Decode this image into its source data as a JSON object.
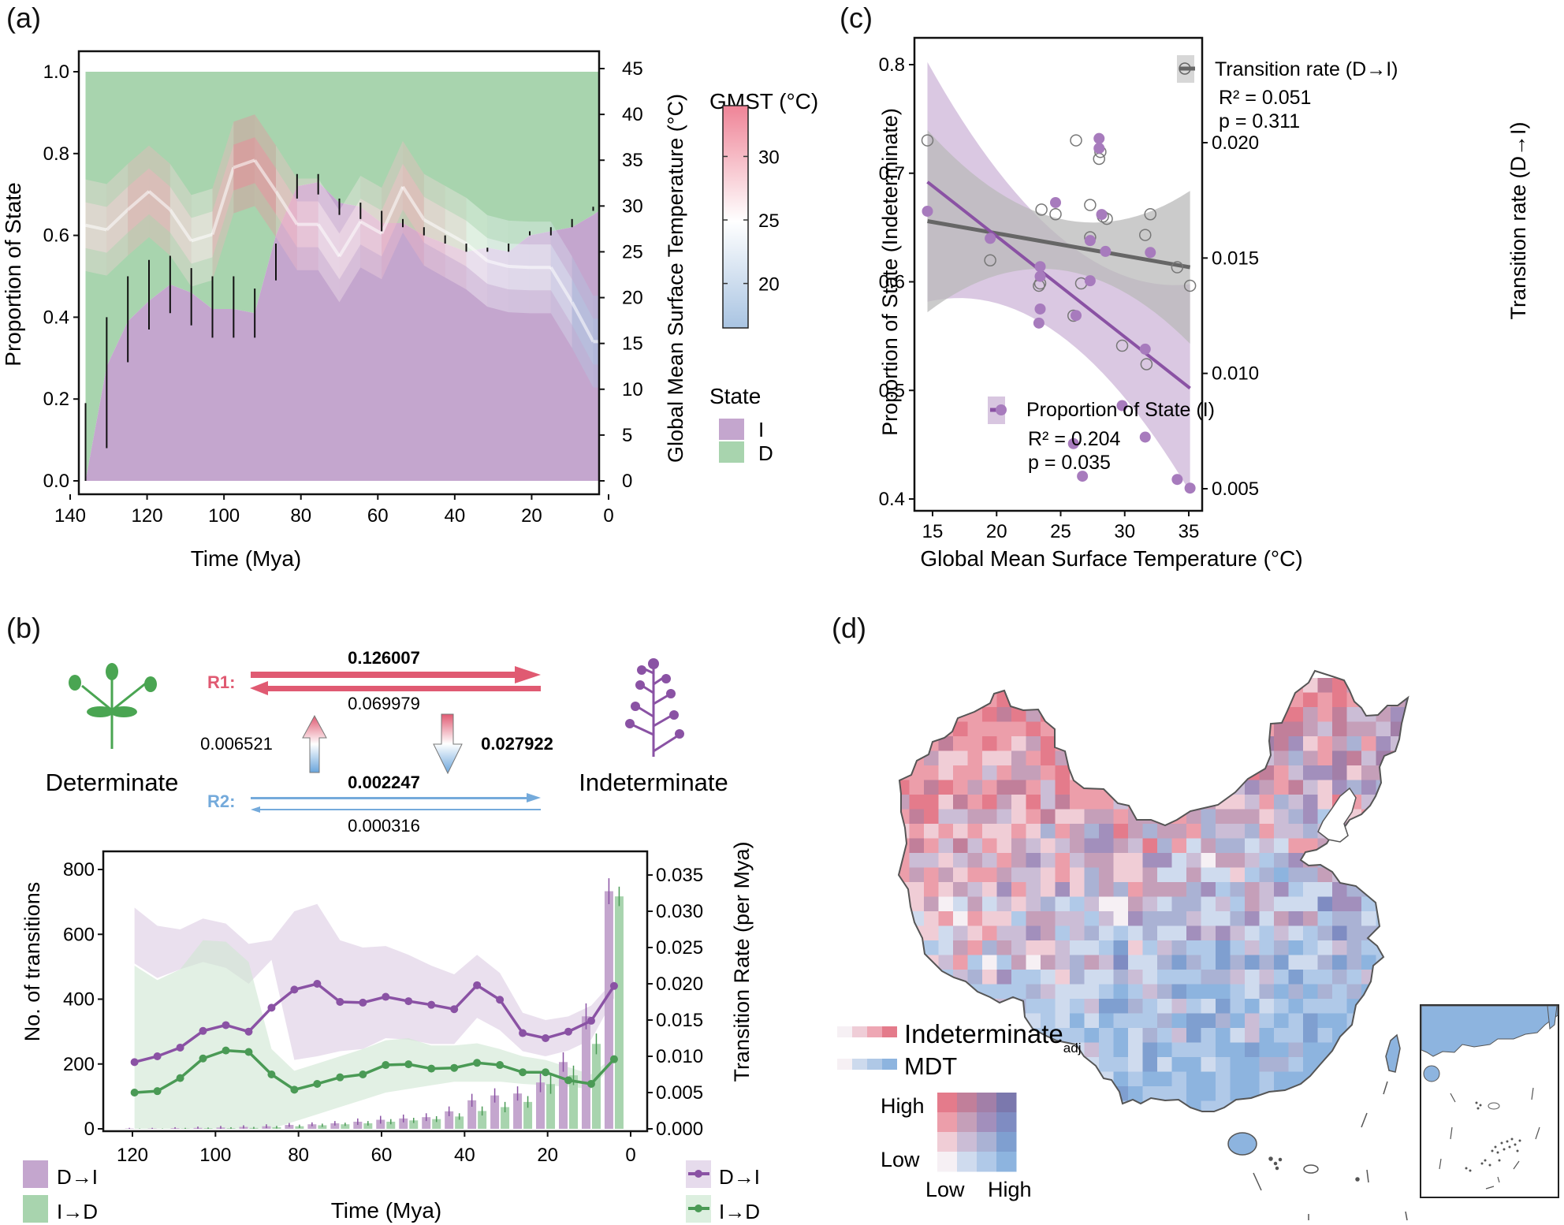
{
  "panel_labels": {
    "a": "(a)",
    "b": "(b)",
    "c": "(c)",
    "d": "(d)"
  },
  "chart_data": [
    {
      "id": "a",
      "type": "area",
      "title": "",
      "xlabel": "Time (Mya)",
      "ylabel": "Proportion of State",
      "y2label": "Global Mean Surface Temperature (°C)",
      "xlim": [
        140,
        0
      ],
      "ylim": [
        0,
        1.0
      ],
      "y2lim": [
        0,
        45
      ],
      "x_ticks": [
        140,
        120,
        100,
        80,
        60,
        40,
        20,
        0
      ],
      "y_ticks": [
        0.0,
        0.2,
        0.4,
        0.6,
        0.8,
        1.0
      ],
      "y_tick_labels": [
        "0.0",
        "0.2",
        "0.4",
        "0.6",
        "0.8",
        "1.0"
      ],
      "y2_ticks": [
        0,
        5,
        10,
        15,
        20,
        25,
        30,
        35,
        40,
        45
      ],
      "x": [
        136,
        130.5,
        125,
        119.5,
        114,
        108.5,
        103,
        97.5,
        92,
        86.5,
        81,
        75.5,
        70,
        64.5,
        59,
        53.5,
        48,
        42.5,
        37,
        31.5,
        26,
        20.5,
        15,
        9.5,
        4,
        2.5
      ],
      "series": [
        {
          "name": "I",
          "color": "#c4a6ce",
          "values": [
            0.0,
            0.28,
            0.39,
            0.44,
            0.48,
            0.46,
            0.42,
            0.42,
            0.41,
            0.6,
            0.72,
            0.73,
            0.68,
            0.67,
            0.63,
            0.63,
            0.6,
            0.58,
            0.56,
            0.57,
            0.56,
            0.6,
            0.61,
            0.62,
            0.65,
            0.66
          ]
        },
        {
          "name": "D",
          "color": "#a8d4ae",
          "values": [
            1.0,
            0.72,
            0.61,
            0.56,
            0.52,
            0.54,
            0.58,
            0.58,
            0.59,
            0.4,
            0.28,
            0.27,
            0.32,
            0.33,
            0.37,
            0.37,
            0.4,
            0.42,
            0.44,
            0.43,
            0.44,
            0.4,
            0.39,
            0.38,
            0.35,
            0.34
          ]
        }
      ],
      "error_bars": {
        "x": [
          136,
          130.5,
          125,
          119.5,
          114,
          108.5,
          103,
          97.5,
          92,
          86.5,
          81,
          75.5,
          70,
          64.5,
          59,
          53.5,
          48,
          42.5,
          37,
          31.5,
          26,
          20.5,
          15,
          9.5,
          4
        ],
        "low": [
          0.0,
          0.08,
          0.29,
          0.37,
          0.41,
          0.38,
          0.35,
          0.35,
          0.35,
          0.49,
          0.69,
          0.7,
          0.65,
          0.64,
          0.61,
          0.62,
          0.6,
          0.58,
          0.56,
          0.56,
          0.56,
          0.6,
          0.6,
          0.62,
          0.66
        ],
        "high": [
          0.19,
          0.4,
          0.5,
          0.54,
          0.55,
          0.52,
          0.5,
          0.5,
          0.47,
          0.58,
          0.75,
          0.75,
          0.69,
          0.68,
          0.66,
          0.64,
          0.62,
          0.6,
          0.58,
          0.57,
          0.58,
          0.61,
          0.62,
          0.64,
          0.67
        ]
      },
      "gmst": {
        "name": "GMST (°C)",
        "x": [
          136,
          130.5,
          125,
          119.5,
          114,
          108.5,
          103,
          97.5,
          92,
          86.5,
          81,
          75.5,
          70,
          64.5,
          59,
          53.5,
          48,
          42.5,
          37,
          31.5,
          26,
          20.5,
          15,
          9.5,
          4,
          2.5
        ],
        "values": [
          27.9,
          27.4,
          29.6,
          31.6,
          29.6,
          26.2,
          26.9,
          34.2,
          35.0,
          31.6,
          28.0,
          28.0,
          24.5,
          28.3,
          27.0,
          32.1,
          28.5,
          27.2,
          25.9,
          24.0,
          23.4,
          23.3,
          23.3,
          19.5,
          15.2,
          15.2
        ],
        "band_inner": 2.5,
        "band_outer": 5.0
      },
      "colorbar": {
        "title": "GMST (°C)",
        "ticks": [
          20,
          25,
          30
        ],
        "range": [
          16.5,
          34
        ],
        "colors": [
          "#a9c4e2",
          "#ffffff",
          "#ef8497"
        ]
      },
      "legend": {
        "title": "State",
        "items": [
          {
            "label": "I",
            "color": "#c4a6ce"
          },
          {
            "label": "D",
            "color": "#a8d4ae"
          }
        ],
        "placement": "right"
      }
    },
    {
      "id": "c",
      "type": "scatter",
      "xlabel": "Global Mean Surface Temperature (°C)",
      "ylabel": "Proportion of State (Indeterminate)",
      "y2label": "Transition rate (D→I)",
      "xlim": [
        13.6,
        36.2
      ],
      "ylim": [
        0.39,
        0.825
      ],
      "y2lim": [
        0.0043,
        0.0232
      ],
      "x_ticks": [
        15,
        20,
        25,
        30,
        35
      ],
      "y_ticks": [
        0.4,
        0.5,
        0.6,
        0.7,
        0.8
      ],
      "y_tick_labels": [
        "0.4",
        "0.5",
        "0.6",
        "0.7",
        "0.8"
      ],
      "y2_ticks": [
        0.005,
        0.01,
        0.015,
        0.02
      ],
      "y2_tick_labels": [
        "0.005",
        "0.010",
        "0.015",
        "0.020"
      ],
      "series": [
        {
          "name": "Proportion of State (I)",
          "color": "#8a52a4",
          "marker": "filled-circle",
          "axis": "left",
          "points": [
            [
              14.6,
              0.665
            ],
            [
              19.5,
              0.64
            ],
            [
              23.3,
              0.562
            ],
            [
              23.4,
              0.575
            ],
            [
              23.4,
              0.605
            ],
            [
              23.4,
              0.614
            ],
            [
              24.6,
              0.673
            ],
            [
              26.0,
              0.451
            ],
            [
              26.2,
              0.569
            ],
            [
              26.7,
              0.421
            ],
            [
              27.3,
              0.601
            ],
            [
              27.3,
              0.638
            ],
            [
              28.0,
              0.723
            ],
            [
              28.0,
              0.732
            ],
            [
              28.2,
              0.662
            ],
            [
              28.5,
              0.628
            ],
            [
              29.8,
              0.486
            ],
            [
              31.6,
              0.538
            ],
            [
              31.6,
              0.457
            ],
            [
              32.0,
              0.627
            ],
            [
              34.1,
              0.418
            ],
            [
              35.1,
              0.41
            ]
          ],
          "fit": {
            "x": [
              14.6,
              35.1
            ],
            "y": [
              0.692,
              0.502
            ]
          },
          "r2": "R² = 0.204",
          "p": "p = 0.035"
        },
        {
          "name": "Transition rate (D→I)",
          "color": "#666666",
          "marker": "open-circle",
          "axis": "right",
          "points": [
            [
              14.6,
              0.0201
            ],
            [
              19.5,
              0.0149
            ],
            [
              23.3,
              0.0138
            ],
            [
              23.4,
              0.0139
            ],
            [
              23.5,
              0.0171
            ],
            [
              24.6,
              0.0169
            ],
            [
              26.0,
              0.0125
            ],
            [
              26.2,
              0.0201
            ],
            [
              26.6,
              0.0139
            ],
            [
              27.3,
              0.0159
            ],
            [
              27.3,
              0.0173
            ],
            [
              28.0,
              0.0193
            ],
            [
              28.1,
              0.0196
            ],
            [
              28.3,
              0.0168
            ],
            [
              28.6,
              0.0167
            ],
            [
              29.8,
              0.0112
            ],
            [
              31.6,
              0.016
            ],
            [
              31.7,
              0.0104
            ],
            [
              32.0,
              0.0169
            ],
            [
              34.1,
              0.0146
            ],
            [
              35.1,
              0.0138
            ]
          ],
          "fit": {
            "x": [
              14.6,
              35.1
            ],
            "y": [
              0.0166,
              0.0146
            ]
          },
          "r2": "R² = 0.051",
          "p": "p = 0.311"
        }
      ]
    },
    {
      "id": "b",
      "type": "bar",
      "xlabel": "Time (Mya)",
      "ylabel": "No. of transitions",
      "y2label": "Transition Rate (per Mya)",
      "xlim": [
        127,
        -7
      ],
      "ylim": [
        -35,
        850
      ],
      "y2lim": [
        -0.00153,
        0.0372
      ],
      "x_ticks": [
        120,
        100,
        80,
        60,
        40,
        20,
        0
      ],
      "y_ticks": [
        0,
        200,
        400,
        600,
        800
      ],
      "y2_ticks": [
        0.0,
        0.005,
        0.01,
        0.015,
        0.02,
        0.025,
        0.03,
        0.035
      ],
      "y2_tick_labels": [
        "0.000",
        "0.005",
        "0.010",
        "0.015",
        "0.020",
        "0.025",
        "0.030",
        "0.035"
      ],
      "x": [
        119.5,
        114,
        108.5,
        103,
        97.5,
        92,
        86.5,
        81,
        75.5,
        70,
        64.5,
        59,
        53.5,
        48,
        42.5,
        37,
        31.5,
        26,
        20.5,
        15,
        9.5,
        4
      ],
      "bars": [
        {
          "name": "D→I",
          "color": "#c4a6ce",
          "err_color": "#8a52a4",
          "values": [
            1,
            1,
            2,
            3,
            4,
            6,
            8,
            12,
            14,
            17,
            22,
            28,
            32,
            36,
            54,
            88,
            103,
            109,
            143,
            206,
            347,
            733
          ],
          "err": [
            2,
            2,
            3,
            4,
            5,
            5,
            6,
            6,
            6,
            7,
            10,
            12,
            12,
            12,
            15,
            20,
            22,
            22,
            30,
            30,
            40,
            40
          ]
        },
        {
          "name": "I→D",
          "color": "#a8d4ae",
          "err_color": "#4a9a55",
          "values": [
            0,
            0,
            1,
            2,
            2,
            3,
            5,
            8,
            11,
            14,
            17,
            22,
            26,
            30,
            38,
            55,
            67,
            83,
            138,
            165,
            262,
            717
          ],
          "err": [
            1,
            1,
            2,
            2,
            3,
            3,
            4,
            5,
            5,
            5,
            7,
            8,
            8,
            9,
            10,
            14,
            16,
            18,
            30,
            30,
            32,
            30
          ]
        }
      ],
      "lines": [
        {
          "name": "D→I",
          "color": "#8a52a4",
          "band_color": "#d8c6e0",
          "values": [
            0.0092,
            0.01,
            0.0112,
            0.0135,
            0.0143,
            0.0134,
            0.0167,
            0.0192,
            0.02,
            0.0175,
            0.0174,
            0.0182,
            0.0176,
            0.0171,
            0.0165,
            0.0198,
            0.0178,
            0.0132,
            0.0125,
            0.0134,
            0.0149,
            0.0197
          ],
          "low": [
            0.0228,
            0.0208,
            0.022,
            0.023,
            0.0222,
            0.02,
            0.0233,
            0.0095,
            0.01,
            0.0107,
            0.011,
            0.0125,
            0.0123,
            0.0117,
            0.0117,
            0.0153,
            0.0136,
            0.0107,
            0.01,
            0.0108,
            0.0123,
            0.018
          ],
          "high": [
            0.0305,
            0.028,
            0.0275,
            0.029,
            0.0283,
            0.0255,
            0.026,
            0.03,
            0.031,
            0.026,
            0.025,
            0.0252,
            0.024,
            0.0225,
            0.0213,
            0.024,
            0.0215,
            0.016,
            0.015,
            0.0155,
            0.017,
            0.0205
          ]
        },
        {
          "name": "I→D",
          "color": "#4a9a55",
          "band_color": "#cfe6d2",
          "values": [
            0.005,
            0.0052,
            0.007,
            0.0097,
            0.0108,
            0.0106,
            0.0075,
            0.0054,
            0.0062,
            0.0071,
            0.0075,
            0.0088,
            0.0089,
            0.0083,
            0.0084,
            0.0091,
            0.0088,
            0.0078,
            0.0078,
            0.0067,
            0.0062,
            0.0096
          ],
          "low": [
            0.0,
            0.0,
            0.0,
            0.0,
            0.0,
            0.0,
            0.0,
            0.001,
            0.002,
            0.003,
            0.004,
            0.005,
            0.0055,
            0.006,
            0.0065,
            0.0065,
            0.0065,
            0.0062,
            0.006,
            0.0058,
            0.0055,
            0.009
          ],
          "high": [
            0.0225,
            0.0205,
            0.022,
            0.026,
            0.0258,
            0.023,
            0.011,
            0.008,
            0.009,
            0.01,
            0.011,
            0.0122,
            0.0125,
            0.0115,
            0.0115,
            0.0118,
            0.011,
            0.01,
            0.0095,
            0.0085,
            0.0075,
            0.01
          ]
        }
      ],
      "legend_bars": [
        {
          "label": "D→I",
          "color": "#c4a6ce"
        },
        {
          "label": "I→D",
          "color": "#a8d4ae"
        }
      ],
      "legend_lines": [
        {
          "label": "D→I",
          "color": "#8a52a4",
          "band": "#e6dbec"
        },
        {
          "label": "I→D",
          "color": "#4a9a55",
          "band": "#dcefdf"
        }
      ]
    }
  ],
  "diagram_b": {
    "determinate_label": "Determinate",
    "indeterminate_label": "Indeterminate",
    "r1_label": "R1:",
    "r2_label": "R2:",
    "r1_forward": "0.126007",
    "r1_backward": "0.069979",
    "r2_forward": "0.002247",
    "r2_backward": "0.000316",
    "r2_to_r1": "0.006521",
    "r1_to_r2": "0.027922",
    "r1_color": "#e05a72",
    "r2_color": "#74aadb",
    "determinate_color": "#4aa552",
    "indeterminate_color": "#8a52a4"
  },
  "map_d": {
    "legend_indeterminate": "Indeterminate",
    "legend_indeterminate_sub": "adj",
    "legend_mdt": "MDT",
    "axis_high": "High",
    "axis_low": "Low",
    "x_low": "Low",
    "x_high": "High",
    "indeterminate_ramp": [
      "#f6f0f4",
      "#efcdd7",
      "#eea7b4",
      "#e47b8b"
    ],
    "mdt_ramp": [
      "#f6f0f4",
      "#cddaed",
      "#afc8e6",
      "#8db4df"
    ],
    "bivariate_grid": [
      [
        "#e47b8b",
        "#c17f9a",
        "#a27fa8",
        "#7b78ad"
      ],
      [
        "#ec9eaa",
        "#c59fb9",
        "#a28fbc",
        "#7f8cc2"
      ],
      [
        "#f0cdd6",
        "#cbbdd6",
        "#aab2d4",
        "#7f9fd0"
      ],
      [
        "#f6f0f4",
        "#cfdbee",
        "#b0c9e8",
        "#8db4df"
      ]
    ]
  }
}
